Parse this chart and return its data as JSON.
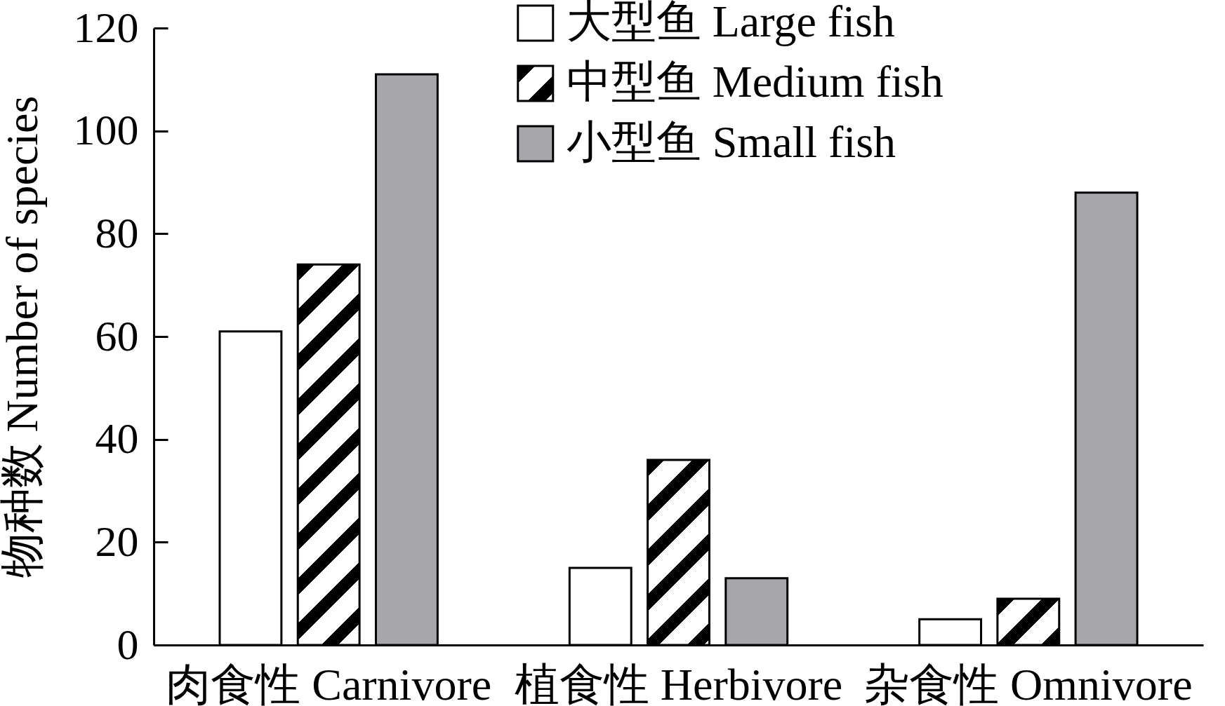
{
  "chart_data": {
    "type": "bar",
    "categories": [
      "肉食性 Carnivore",
      "植食性 Herbivore",
      "杂食性 Omnivore"
    ],
    "ylabel": "物种数 Number of species",
    "series": [
      {
        "name": "大型鱼 Large fish",
        "color": "#ffffff",
        "values": [
          61,
          15,
          5
        ]
      },
      {
        "name": "中型鱼 Medium fish",
        "color": "#000000",
        "values": [
          74,
          36,
          9
        ]
      },
      {
        "name": "小型鱼 Small fish",
        "color": "#a7a6aa",
        "values": [
          111,
          13,
          88
        ]
      }
    ],
    "ylim": [
      0,
      120
    ],
    "yticks": [
      0,
      20,
      40,
      60,
      80,
      100,
      120
    ],
    "grid": false,
    "legend": "top"
  }
}
